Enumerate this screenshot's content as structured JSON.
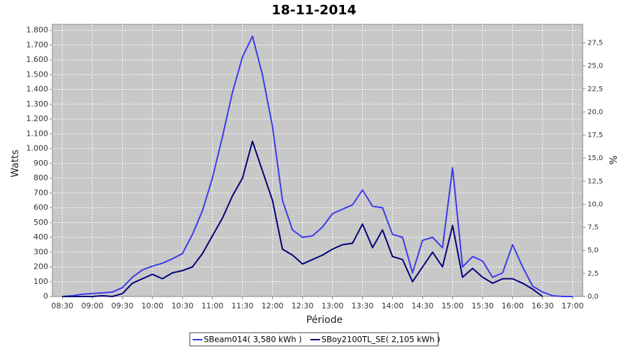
{
  "chart_data": {
    "type": "line",
    "title": "18-11-2014",
    "x_label": "Période",
    "y_label": "Watts",
    "y2_label": "%",
    "x": [
      "08:30",
      "08:40",
      "08:50",
      "09:00",
      "09:10",
      "09:20",
      "09:30",
      "09:40",
      "09:50",
      "10:00",
      "10:10",
      "10:20",
      "10:30",
      "10:40",
      "10:50",
      "11:00",
      "11:10",
      "11:20",
      "11:30",
      "11:40",
      "11:50",
      "12:00",
      "12:10",
      "12:20",
      "12:30",
      "12:40",
      "12:50",
      "13:00",
      "13:10",
      "13:20",
      "13:30",
      "13:40",
      "13:50",
      "14:00",
      "14:10",
      "14:20",
      "14:30",
      "14:40",
      "14:50",
      "15:00",
      "15:10",
      "15:20",
      "15:30",
      "15:40",
      "15:50",
      "16:00",
      "16:10",
      "16:20",
      "16:30",
      "16:40",
      "16:50",
      "17:00"
    ],
    "series": [
      {
        "name": "SBeam014( 3,580 kWh )",
        "color": "#3a3aee",
        "values": [
          0,
          5,
          15,
          20,
          25,
          30,
          60,
          130,
          180,
          205,
          225,
          255,
          290,
          420,
          580,
          800,
          1080,
          1380,
          1620,
          1760,
          1500,
          1150,
          650,
          450,
          400,
          410,
          470,
          560,
          590,
          620,
          720,
          610,
          600,
          420,
          400,
          160,
          380,
          400,
          330,
          870,
          200,
          270,
          240,
          130,
          160,
          350,
          200,
          70,
          30,
          5,
          0,
          0
        ]
      },
      {
        "name": "SBoy2100TL_SE( 2,105 kWh )",
        "color": "#00007a",
        "values": [
          0,
          0,
          0,
          0,
          5,
          0,
          20,
          90,
          120,
          150,
          120,
          160,
          175,
          200,
          290,
          410,
          530,
          680,
          800,
          1050,
          850,
          650,
          320,
          280,
          220,
          250,
          280,
          320,
          350,
          360,
          490,
          330,
          450,
          270,
          250,
          100,
          200,
          300,
          200,
          480,
          130,
          190,
          130,
          90,
          120,
          120,
          90,
          50,
          0,
          null,
          null,
          null
        ]
      }
    ],
    "xlim": [
      "08:20",
      "17:10"
    ],
    "xticks": [
      "08:30",
      "09:00",
      "09:30",
      "10:00",
      "10:30",
      "11:00",
      "11:30",
      "12:00",
      "12:30",
      "13:00",
      "13:30",
      "14:00",
      "14:30",
      "15:00",
      "15:30",
      "16:00",
      "16:30",
      "17:00"
    ],
    "ylim": [
      0,
      1840
    ],
    "yticks": [
      0,
      100,
      200,
      300,
      400,
      500,
      600,
      700,
      800,
      900,
      {
        "value": 1000,
        "label": "1.000"
      },
      {
        "value": 1100,
        "label": "1.100"
      },
      {
        "value": 1200,
        "label": "1.200"
      },
      {
        "value": 1300,
        "label": "1.300"
      },
      {
        "value": 1400,
        "label": "1.400"
      },
      {
        "value": 1500,
        "label": "1.500"
      },
      {
        "value": 1600,
        "label": "1.600"
      },
      {
        "value": 1700,
        "label": "1.700"
      },
      {
        "value": 1800,
        "label": "1.800"
      }
    ],
    "y2lim": [
      0,
      29.5
    ],
    "y2ticks": [
      {
        "value": 0,
        "label": "0,0"
      },
      {
        "value": 2.5,
        "label": "2,5"
      },
      {
        "value": 5,
        "label": "5,0"
      },
      {
        "value": 7.5,
        "label": "7,5"
      },
      {
        "value": 10,
        "label": "10,0"
      },
      {
        "value": 12.5,
        "label": "12,5"
      },
      {
        "value": 15,
        "label": "15,0"
      },
      {
        "value": 17.5,
        "label": "17,5"
      },
      {
        "value": 20,
        "label": "20,0"
      },
      {
        "value": 22.5,
        "label": "22,5"
      },
      {
        "value": 25,
        "label": "25,0"
      },
      {
        "value": 27.5,
        "label": "27,5"
      }
    ],
    "grid": true,
    "legend": "bottom"
  }
}
